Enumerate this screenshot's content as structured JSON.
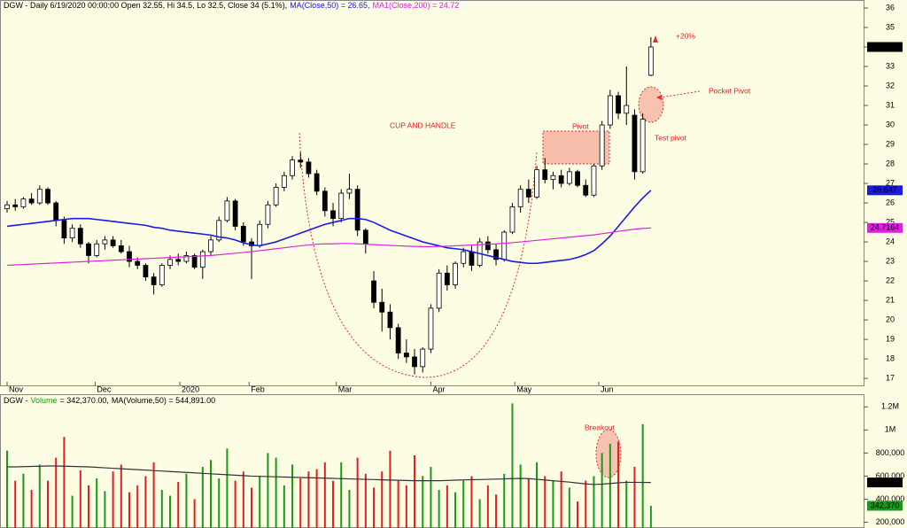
{
  "chart_data": [
    {
      "type": "candlestick",
      "title": "DGW - Daily 6/19/2020 00:00:00 Open 32.55, Hi 34.5, Lo 32.5, Close 34 (5.1%),",
      "close_label": "34",
      "xlim": [
        -0.87,
        105.1
      ],
      "xticks": [
        {
          "value": 0,
          "label": "Nov"
        },
        {
          "value": 10.8,
          "label": "Dec"
        },
        {
          "value": 21.2,
          "label": "2020"
        },
        {
          "value": 29.7,
          "label": "Feb"
        },
        {
          "value": 40.4,
          "label": "Mar"
        },
        {
          "value": 52.0,
          "label": "Apr"
        },
        {
          "value": 62.3,
          "label": "May"
        },
        {
          "value": 72.6,
          "label": "Jun"
        }
      ],
      "ylim": [
        16.64,
        36.41
      ],
      "yticks": [
        17,
        18,
        19,
        20,
        21,
        22,
        23,
        24,
        25,
        26,
        27,
        28,
        29,
        30,
        31,
        32,
        33,
        34,
        35,
        36
      ],
      "annotations": [
        "CUP AND HANDLE",
        "Pivot",
        "+20%",
        "Pocket Pivot",
        "Test pivot"
      ],
      "open": [
        25.7,
        25.9,
        25.8,
        26.2,
        26.0,
        26.7,
        26.0,
        25.1,
        24.2,
        24.7,
        23.9,
        23.3,
        23.9,
        24.1,
        23.8,
        23.5,
        23.0,
        22.8,
        22.2,
        21.8,
        22.8,
        23.1,
        23.0,
        23.3,
        22.7,
        23.5,
        24.1,
        25.1,
        26.1,
        24.8,
        24.0,
        23.8,
        24.9,
        25.9,
        26.8,
        27.4,
        28.2,
        28.1,
        27.5,
        26.6,
        25.6,
        25.2,
        26.5,
        26.7,
        24.6,
        22.0,
        20.9,
        20.4,
        19.6,
        18.3,
        18.1,
        17.6,
        18.5,
        20.6,
        22.4,
        21.8,
        22.9,
        23.5,
        22.8,
        24.0,
        23.6,
        23.1,
        24.5,
        25.8,
        26.7,
        26.3,
        27.7,
        27.2,
        27.4,
        27.0,
        27.6,
        26.9,
        26.4,
        27.9,
        30.0,
        31.5,
        30.6,
        30.5,
        27.6,
        32.55
      ],
      "high": [
        26.1,
        26.2,
        26.3,
        26.5,
        26.9,
        26.8,
        26.1,
        25.3,
        24.9,
        24.9,
        24.0,
        24.1,
        24.3,
        24.3,
        24.1,
        23.8,
        23.2,
        22.9,
        22.4,
        22.9,
        23.3,
        23.4,
        23.5,
        23.4,
        23.6,
        24.3,
        25.3,
        26.3,
        26.2,
        25.0,
        24.2,
        25.1,
        26.1,
        27.0,
        27.6,
        28.4,
        28.6,
        28.3,
        27.7,
        26.8,
        26.0,
        26.7,
        27.5,
        26.9,
        24.7,
        22.5,
        21.6,
        20.8,
        19.8,
        19.0,
        18.5,
        18.6,
        20.8,
        22.6,
        22.8,
        23.0,
        23.7,
        23.8,
        24.2,
        24.3,
        23.9,
        24.6,
        26.0,
        26.9,
        27.2,
        27.9,
        28.3,
        27.6,
        27.7,
        27.8,
        27.7,
        27.2,
        28.0,
        30.2,
        31.8,
        31.7,
        33.0,
        30.8,
        30.6,
        34.5
      ],
      "low": [
        25.5,
        25.6,
        25.7,
        25.9,
        25.9,
        25.9,
        24.8,
        23.9,
        24.0,
        23.7,
        22.9,
        23.2,
        23.6,
        23.7,
        23.4,
        22.7,
        22.6,
        22.0,
        21.3,
        21.7,
        22.6,
        22.8,
        22.9,
        22.6,
        22.1,
        23.3,
        24.0,
        25.0,
        24.6,
        23.8,
        22.1,
        23.7,
        24.7,
        25.8,
        26.6,
        27.2,
        27.8,
        27.3,
        26.4,
        25.3,
        24.8,
        25.0,
        26.2,
        24.3,
        23.4,
        20.6,
        19.4,
        19.0,
        18.0,
        17.8,
        17.2,
        17.3,
        18.3,
        20.4,
        21.5,
        21.6,
        22.7,
        22.5,
        22.7,
        23.4,
        22.8,
        23.0,
        24.4,
        25.5,
        26.0,
        26.2,
        27.0,
        26.7,
        26.8,
        26.9,
        26.8,
        26.3,
        26.3,
        27.7,
        29.8,
        30.3,
        30.0,
        27.2,
        27.5,
        32.5
      ],
      "close": [
        25.9,
        25.8,
        26.2,
        26.0,
        26.7,
        26.0,
        25.1,
        24.2,
        24.7,
        23.9,
        23.3,
        23.9,
        24.1,
        23.8,
        23.5,
        23.0,
        22.8,
        22.2,
        21.8,
        22.8,
        23.1,
        23.0,
        23.3,
        22.7,
        23.5,
        24.1,
        25.1,
        26.1,
        24.8,
        24.0,
        23.8,
        24.9,
        25.9,
        26.8,
        27.4,
        28.2,
        28.1,
        27.5,
        26.6,
        25.6,
        25.2,
        26.5,
        26.7,
        24.6,
        23.9,
        20.9,
        20.4,
        19.6,
        18.3,
        18.1,
        17.6,
        18.5,
        20.6,
        22.4,
        21.8,
        22.9,
        23.5,
        22.8,
        24.0,
        23.6,
        23.1,
        24.5,
        25.8,
        26.7,
        26.3,
        27.7,
        27.2,
        27.4,
        27.0,
        27.6,
        26.9,
        26.4,
        27.9,
        30.0,
        31.5,
        30.6,
        31.0,
        27.6,
        30.3,
        34
      ],
      "series": [
        {
          "name": "MA(Close,50)",
          "legend_text": "MA(Close,50) = 26.65,",
          "last_label": "26.647",
          "color": "#1a1ae0",
          "values": [
            24.8,
            24.85,
            24.9,
            24.95,
            25.0,
            25.05,
            25.1,
            25.15,
            25.2,
            25.2,
            25.2,
            25.15,
            25.1,
            25.05,
            25.0,
            24.95,
            24.9,
            24.85,
            24.75,
            24.7,
            24.6,
            24.55,
            24.5,
            24.45,
            24.4,
            24.35,
            24.25,
            24.2,
            24.1,
            23.95,
            23.85,
            23.8,
            23.9,
            24.0,
            24.15,
            24.3,
            24.45,
            24.6,
            24.75,
            24.9,
            25.0,
            25.1,
            25.2,
            25.2,
            25.15,
            25.0,
            24.8,
            24.6,
            24.45,
            24.3,
            24.15,
            24.0,
            23.9,
            23.8,
            23.7,
            23.65,
            23.6,
            23.5,
            23.4,
            23.3,
            23.2,
            23.1,
            23.0,
            22.95,
            22.9,
            22.9,
            22.95,
            23.0,
            23.05,
            23.1,
            23.2,
            23.35,
            23.55,
            23.9,
            24.3,
            24.8,
            25.3,
            25.8,
            26.25,
            26.647
          ]
        },
        {
          "name": "MA1(Close,200)",
          "legend_text": "MA1(Close,200) = 24.72",
          "last_label": "24.7164",
          "color": "#e020e0",
          "values": [
            22.8,
            22.82,
            22.84,
            22.86,
            22.88,
            22.9,
            22.92,
            22.94,
            22.96,
            22.98,
            23.0,
            23.02,
            23.04,
            23.06,
            23.08,
            23.1,
            23.12,
            23.14,
            23.16,
            23.18,
            23.2,
            23.22,
            23.24,
            23.26,
            23.28,
            23.3,
            23.34,
            23.38,
            23.42,
            23.46,
            23.5,
            23.55,
            23.6,
            23.65,
            23.7,
            23.75,
            23.8,
            23.84,
            23.88,
            23.9,
            23.9,
            23.92,
            23.92,
            23.9,
            23.88,
            23.86,
            23.84,
            23.82,
            23.8,
            23.78,
            23.77,
            23.76,
            23.76,
            23.77,
            23.78,
            23.8,
            23.82,
            23.84,
            23.86,
            23.88,
            23.9,
            23.93,
            23.96,
            24.0,
            24.04,
            24.08,
            24.12,
            24.16,
            24.2,
            24.24,
            24.28,
            24.32,
            24.36,
            24.42,
            24.48,
            24.54,
            24.6,
            24.65,
            24.69,
            24.7164
          ]
        }
      ]
    },
    {
      "type": "bar",
      "title": "DGW -",
      "annotations": [
        "Breakout"
      ],
      "ylim": [
        150000,
        1310000
      ],
      "yticks": [
        {
          "value": 200000,
          "label": "200,000"
        },
        {
          "value": 400000,
          "label": "400,000"
        },
        {
          "value": 600000,
          "label": "600,000"
        },
        {
          "value": 800000,
          "label": "800,000"
        },
        {
          "value": 1000000,
          "label": "1M"
        },
        {
          "value": 1200000,
          "label": "1.2M"
        }
      ],
      "up_color": "#1a9a1a",
      "down_color": "#e02020",
      "series": [
        {
          "name": "Volume",
          "legend_text": "= 342,370.00,",
          "last_label": "342,370",
          "color": "#1a9a1a",
          "values": [
            820000,
            560000,
            620000,
            480000,
            700000,
            560000,
            760000,
            940000,
            430000,
            650000,
            520000,
            580000,
            470000,
            640000,
            700000,
            460000,
            520000,
            600000,
            720000,
            480000,
            430000,
            550000,
            620000,
            400000,
            680000,
            740000,
            580000,
            840000,
            560000,
            640000,
            500000,
            600000,
            800000,
            760000,
            520000,
            700000,
            580000,
            640000,
            660000,
            720000,
            560000,
            720000,
            480000,
            760000,
            620000,
            500000,
            640000,
            820000,
            560000,
            520000,
            780000,
            600000,
            680000,
            480000,
            520000,
            460000,
            560000,
            600000,
            400000,
            520000,
            440000,
            620000,
            1230000,
            700000,
            580000,
            720000,
            600000,
            560000,
            640000,
            500000,
            380000,
            560000,
            600000,
            800000,
            880000,
            900000,
            560000,
            680000,
            1050000,
            342370
          ]
        },
        {
          "name": "MA(Volume,50)",
          "legend_text": "MA(Volume,50) = 544,891.00",
          "last_label": "544,891",
          "color": "#333333",
          "values": [
            680000,
            680000,
            682000,
            684000,
            686000,
            688000,
            688000,
            686000,
            684000,
            682000,
            680000,
            676000,
            672000,
            668000,
            664000,
            660000,
            656000,
            652000,
            648000,
            644000,
            640000,
            636000,
            632000,
            628000,
            624000,
            620000,
            616000,
            612000,
            608000,
            604000,
            600000,
            598000,
            596000,
            594000,
            592000,
            590000,
            588000,
            586000,
            584000,
            582000,
            580000,
            578000,
            576000,
            574000,
            572000,
            570000,
            568000,
            566000,
            564000,
            562000,
            560000,
            560000,
            560000,
            560000,
            562000,
            565000,
            567000,
            569000,
            570000,
            572000,
            574000,
            576000,
            578000,
            580000,
            578000,
            572000,
            566000,
            560000,
            554000,
            548000,
            540000,
            532000,
            528000,
            530000,
            536000,
            542000,
            546000,
            546000,
            545000,
            544891
          ]
        }
      ]
    }
  ]
}
